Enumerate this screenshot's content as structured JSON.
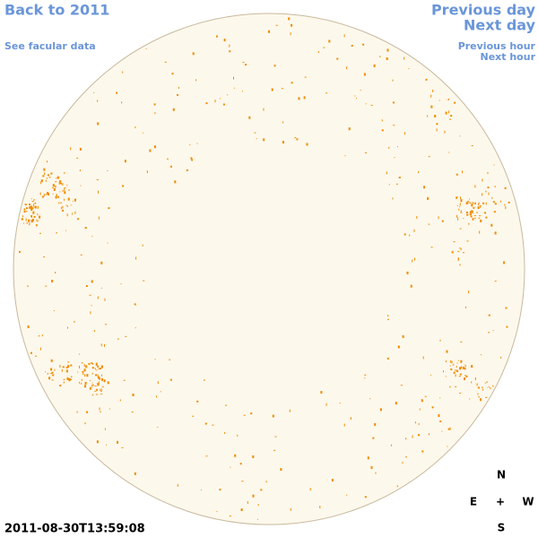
{
  "navigation": {
    "back_link": "Back to 2011",
    "facular_link": "See facular data",
    "previous_day": "Previous day",
    "next_day": "Next day",
    "previous_hour": "Previous hour",
    "next_hour": "Next hour"
  },
  "compass": {
    "north": "N",
    "east": "E",
    "center": "+",
    "west": "W",
    "south": "S"
  },
  "timestamp": "2011-08-30T13:59:08"
}
